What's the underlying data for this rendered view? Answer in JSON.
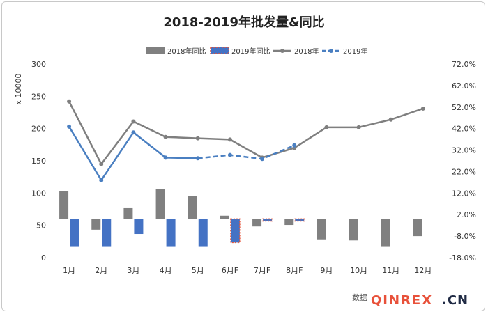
{
  "chart_data": {
    "type": "bar+line",
    "title": "2018-2019年批发量&同比",
    "ylabel_left": "x 10000",
    "ylim_left": [
      0,
      300
    ],
    "yticks_left": [
      "0",
      "50",
      "100",
      "150",
      "200",
      "250",
      "300"
    ],
    "ylim_right": [
      -18,
      72
    ],
    "yticks_right": [
      "-18.0%",
      "-8.0%",
      "2.0%",
      "12.0%",
      "22.0%",
      "32.0%",
      "42.0%",
      "52.0%",
      "62.0%",
      "72.0%"
    ],
    "categories": [
      "1月",
      "2月",
      "3月",
      "4月",
      "5月",
      "6月F",
      "7月F",
      "8月F",
      "9月",
      "10月",
      "11月",
      "12月"
    ],
    "legend": [
      "2018年同比",
      "2019年同比",
      "2018年",
      "2019年"
    ],
    "bar_series": [
      {
        "name": "2018年同比",
        "color": "#808080",
        "values": [
          13.0,
          -5.0,
          5.0,
          14.0,
          10.5,
          1.5,
          -3.5,
          -2.8,
          -9.5,
          -10.0,
          -13.0,
          -8.0
        ]
      },
      {
        "name": "2019年同比",
        "color": "#4472c4",
        "values": [
          -13.0,
          -13.0,
          -7.0,
          -13.0,
          -13.0,
          -11.0,
          -1.0,
          -1.0
        ],
        "forecast_from_index": 5,
        "forecast_border": "#e8553a"
      }
    ],
    "line_series": [
      {
        "name": "2018年",
        "color": "#7f7f7f",
        "values": [
          242,
          145,
          211,
          187,
          185,
          183,
          155,
          170,
          202,
          202,
          214,
          231
        ]
      },
      {
        "name": "2019年",
        "color": "#4a7fc1",
        "values": [
          203,
          120,
          194,
          155,
          154,
          159,
          153,
          174
        ],
        "forecast_from_index": 5
      }
    ],
    "grid": false,
    "legend_position": "top-center"
  },
  "source_label": "数据",
  "watermark": "QINREX",
  "watermark_suffix": ".CN"
}
